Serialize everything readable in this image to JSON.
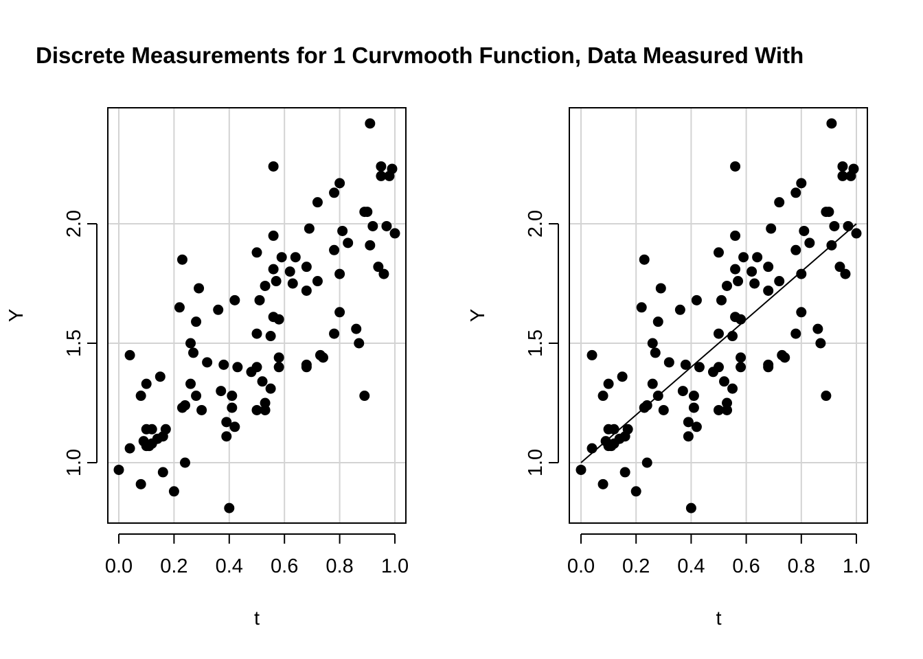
{
  "title": "Discrete Measurements for 1 Curvmooth Function, Data Measured With",
  "chart_data": [
    {
      "type": "scatter",
      "xlabel": "t",
      "ylabel": "Y",
      "xlim": [
        0.0,
        1.0
      ],
      "ylim": [
        0.8,
        2.45
      ],
      "x_ticks": [
        "0.0",
        "0.2",
        "0.4",
        "0.6",
        "0.8",
        "1.0"
      ],
      "y_ticks": [
        "1.0",
        "1.5",
        "2.0"
      ],
      "grid": true,
      "fit_line": null,
      "points": [
        [
          0.0,
          0.97
        ],
        [
          0.04,
          1.06
        ],
        [
          0.04,
          1.45
        ],
        [
          0.08,
          0.91
        ],
        [
          0.08,
          1.28
        ],
        [
          0.09,
          1.09
        ],
        [
          0.1,
          1.33
        ],
        [
          0.1,
          1.14
        ],
        [
          0.1,
          1.07
        ],
        [
          0.11,
          1.07
        ],
        [
          0.12,
          1.14
        ],
        [
          0.12,
          1.08
        ],
        [
          0.14,
          1.1
        ],
        [
          0.15,
          1.36
        ],
        [
          0.16,
          1.11
        ],
        [
          0.16,
          0.96
        ],
        [
          0.17,
          1.14
        ],
        [
          0.2,
          0.88
        ],
        [
          0.22,
          1.65
        ],
        [
          0.23,
          1.85
        ],
        [
          0.23,
          1.23
        ],
        [
          0.24,
          1.24
        ],
        [
          0.24,
          1.0
        ],
        [
          0.26,
          1.5
        ],
        [
          0.26,
          1.33
        ],
        [
          0.27,
          1.46
        ],
        [
          0.28,
          1.59
        ],
        [
          0.28,
          1.28
        ],
        [
          0.29,
          1.73
        ],
        [
          0.3,
          1.22
        ],
        [
          0.32,
          1.42
        ],
        [
          0.36,
          1.64
        ],
        [
          0.37,
          1.3
        ],
        [
          0.38,
          1.41
        ],
        [
          0.39,
          1.11
        ],
        [
          0.39,
          1.17
        ],
        [
          0.4,
          0.81
        ],
        [
          0.41,
          1.23
        ],
        [
          0.41,
          1.28
        ],
        [
          0.42,
          1.68
        ],
        [
          0.42,
          1.15
        ],
        [
          0.43,
          1.4
        ],
        [
          0.48,
          1.38
        ],
        [
          0.5,
          1.4
        ],
        [
          0.5,
          1.88
        ],
        [
          0.5,
          1.54
        ],
        [
          0.5,
          1.22
        ],
        [
          0.51,
          1.68
        ],
        [
          0.52,
          1.34
        ],
        [
          0.53,
          1.74
        ],
        [
          0.53,
          1.25
        ],
        [
          0.53,
          1.22
        ],
        [
          0.55,
          1.31
        ],
        [
          0.55,
          1.53
        ],
        [
          0.56,
          1.81
        ],
        [
          0.56,
          1.95
        ],
        [
          0.56,
          2.24
        ],
        [
          0.56,
          1.61
        ],
        [
          0.57,
          1.76
        ],
        [
          0.58,
          1.6
        ],
        [
          0.58,
          1.44
        ],
        [
          0.58,
          1.4
        ],
        [
          0.59,
          1.86
        ],
        [
          0.62,
          1.8
        ],
        [
          0.63,
          1.75
        ],
        [
          0.64,
          1.86
        ],
        [
          0.68,
          1.4
        ],
        [
          0.68,
          1.41
        ],
        [
          0.68,
          1.72
        ],
        [
          0.68,
          1.82
        ],
        [
          0.69,
          1.98
        ],
        [
          0.72,
          2.09
        ],
        [
          0.72,
          1.76
        ],
        [
          0.73,
          1.45
        ],
        [
          0.74,
          1.44
        ],
        [
          0.78,
          1.54
        ],
        [
          0.78,
          1.89
        ],
        [
          0.78,
          2.13
        ],
        [
          0.8,
          2.17
        ],
        [
          0.8,
          1.63
        ],
        [
          0.8,
          1.79
        ],
        [
          0.81,
          1.97
        ],
        [
          0.83,
          1.92
        ],
        [
          0.86,
          1.56
        ],
        [
          0.87,
          1.5
        ],
        [
          0.89,
          2.05
        ],
        [
          0.89,
          1.28
        ],
        [
          0.9,
          2.05
        ],
        [
          0.91,
          1.91
        ],
        [
          0.91,
          2.42
        ],
        [
          0.92,
          1.99
        ],
        [
          0.94,
          1.82
        ],
        [
          0.95,
          2.24
        ],
        [
          0.95,
          2.2
        ],
        [
          0.96,
          1.79
        ],
        [
          0.97,
          1.99
        ],
        [
          0.98,
          2.2
        ],
        [
          0.99,
          2.23
        ],
        [
          1.0,
          1.96
        ]
      ]
    },
    {
      "type": "scatter",
      "xlabel": "t",
      "ylabel": "Y",
      "xlim": [
        0.0,
        1.0
      ],
      "ylim": [
        0.8,
        2.45
      ],
      "x_ticks": [
        "0.0",
        "0.2",
        "0.4",
        "0.6",
        "0.8",
        "1.0"
      ],
      "y_ticks": [
        "1.0",
        "1.5",
        "2.0"
      ],
      "grid": true,
      "fit_line": [
        [
          0.0,
          1.0
        ],
        [
          1.0,
          2.0
        ]
      ],
      "points": [
        [
          0.0,
          0.97
        ],
        [
          0.04,
          1.06
        ],
        [
          0.04,
          1.45
        ],
        [
          0.08,
          0.91
        ],
        [
          0.08,
          1.28
        ],
        [
          0.09,
          1.09
        ],
        [
          0.1,
          1.33
        ],
        [
          0.1,
          1.14
        ],
        [
          0.1,
          1.07
        ],
        [
          0.11,
          1.07
        ],
        [
          0.12,
          1.14
        ],
        [
          0.12,
          1.08
        ],
        [
          0.14,
          1.1
        ],
        [
          0.15,
          1.36
        ],
        [
          0.16,
          1.11
        ],
        [
          0.16,
          0.96
        ],
        [
          0.17,
          1.14
        ],
        [
          0.2,
          0.88
        ],
        [
          0.22,
          1.65
        ],
        [
          0.23,
          1.85
        ],
        [
          0.23,
          1.23
        ],
        [
          0.24,
          1.24
        ],
        [
          0.24,
          1.0
        ],
        [
          0.26,
          1.5
        ],
        [
          0.26,
          1.33
        ],
        [
          0.27,
          1.46
        ],
        [
          0.28,
          1.59
        ],
        [
          0.28,
          1.28
        ],
        [
          0.29,
          1.73
        ],
        [
          0.3,
          1.22
        ],
        [
          0.32,
          1.42
        ],
        [
          0.36,
          1.64
        ],
        [
          0.37,
          1.3
        ],
        [
          0.38,
          1.41
        ],
        [
          0.39,
          1.11
        ],
        [
          0.39,
          1.17
        ],
        [
          0.4,
          0.81
        ],
        [
          0.41,
          1.23
        ],
        [
          0.41,
          1.28
        ],
        [
          0.42,
          1.68
        ],
        [
          0.42,
          1.15
        ],
        [
          0.43,
          1.4
        ],
        [
          0.48,
          1.38
        ],
        [
          0.5,
          1.4
        ],
        [
          0.5,
          1.88
        ],
        [
          0.5,
          1.54
        ],
        [
          0.5,
          1.22
        ],
        [
          0.51,
          1.68
        ],
        [
          0.52,
          1.34
        ],
        [
          0.53,
          1.74
        ],
        [
          0.53,
          1.25
        ],
        [
          0.53,
          1.22
        ],
        [
          0.55,
          1.31
        ],
        [
          0.55,
          1.53
        ],
        [
          0.56,
          1.81
        ],
        [
          0.56,
          1.95
        ],
        [
          0.56,
          2.24
        ],
        [
          0.56,
          1.61
        ],
        [
          0.57,
          1.76
        ],
        [
          0.58,
          1.6
        ],
        [
          0.58,
          1.44
        ],
        [
          0.58,
          1.4
        ],
        [
          0.59,
          1.86
        ],
        [
          0.62,
          1.8
        ],
        [
          0.63,
          1.75
        ],
        [
          0.64,
          1.86
        ],
        [
          0.68,
          1.4
        ],
        [
          0.68,
          1.41
        ],
        [
          0.68,
          1.72
        ],
        [
          0.68,
          1.82
        ],
        [
          0.69,
          1.98
        ],
        [
          0.72,
          2.09
        ],
        [
          0.72,
          1.76
        ],
        [
          0.73,
          1.45
        ],
        [
          0.74,
          1.44
        ],
        [
          0.78,
          1.54
        ],
        [
          0.78,
          1.89
        ],
        [
          0.78,
          2.13
        ],
        [
          0.8,
          2.17
        ],
        [
          0.8,
          1.63
        ],
        [
          0.8,
          1.79
        ],
        [
          0.81,
          1.97
        ],
        [
          0.83,
          1.92
        ],
        [
          0.86,
          1.56
        ],
        [
          0.87,
          1.5
        ],
        [
          0.89,
          2.05
        ],
        [
          0.89,
          1.28
        ],
        [
          0.9,
          2.05
        ],
        [
          0.91,
          1.91
        ],
        [
          0.91,
          2.42
        ],
        [
          0.92,
          1.99
        ],
        [
          0.94,
          1.82
        ],
        [
          0.95,
          2.24
        ],
        [
          0.95,
          2.2
        ],
        [
          0.96,
          1.79
        ],
        [
          0.97,
          1.99
        ],
        [
          0.98,
          2.2
        ],
        [
          0.99,
          2.23
        ],
        [
          1.0,
          1.96
        ]
      ]
    }
  ]
}
